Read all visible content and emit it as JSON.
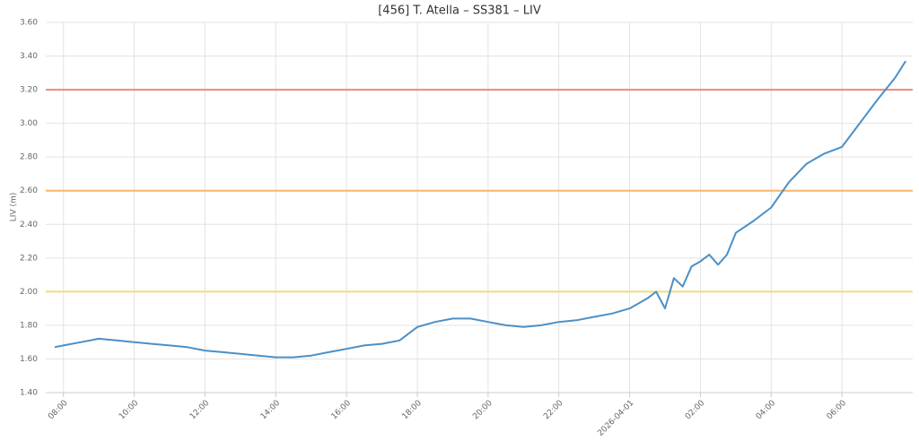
{
  "chart_data": {
    "type": "line",
    "title": "[456] T. Atella – SS381 – LIV",
    "y_label": "LIV (m)",
    "x": [
      -0.25,
      0,
      0.5,
      1,
      1.5,
      2,
      2.5,
      3,
      3.5,
      4,
      4.5,
      5,
      5.5,
      6,
      6.5,
      7,
      7.5,
      8,
      8.5,
      9,
      9.5,
      10,
      10.5,
      11,
      11.5,
      12,
      12.5,
      13,
      13.5,
      14,
      14.5,
      15,
      15.5,
      16,
      16.5,
      16.75,
      17,
      17.25,
      17.5,
      17.75,
      18,
      18.25,
      18.5,
      18.75,
      19,
      19.5,
      20,
      20.5,
      21,
      21.5,
      22,
      22.5,
      23,
      23.5,
      23.8
    ],
    "series": [
      {
        "color": "#4a90c8",
        "values": [
          1.67,
          1.68,
          1.7,
          1.72,
          1.71,
          1.7,
          1.69,
          1.68,
          1.67,
          1.65,
          1.64,
          1.63,
          1.62,
          1.61,
          1.61,
          1.62,
          1.64,
          1.66,
          1.68,
          1.69,
          1.71,
          1.79,
          1.82,
          1.84,
          1.84,
          1.82,
          1.8,
          1.79,
          1.8,
          1.82,
          1.83,
          1.85,
          1.87,
          1.9,
          1.96,
          2.0,
          1.9,
          2.08,
          2.03,
          2.15,
          2.18,
          2.22,
          2.16,
          2.22,
          2.35,
          2.42,
          2.5,
          2.65,
          2.76,
          2.82,
          2.86,
          3.0,
          3.14,
          3.27,
          3.37
        ]
      }
    ],
    "thresholds": [
      {
        "value": 3.2,
        "color": "#ec8a7a"
      },
      {
        "value": 2.6,
        "color": "#f5b46a"
      },
      {
        "value": 2.0,
        "color": "#f2dc7a"
      }
    ],
    "xlim": [
      -0.5,
      24
    ],
    "xticks": [
      {
        "value": 0,
        "label": "08:00"
      },
      {
        "value": 2,
        "label": "10:00"
      },
      {
        "value": 4,
        "label": "12:00"
      },
      {
        "value": 6,
        "label": "14:00"
      },
      {
        "value": 8,
        "label": "16:00"
      },
      {
        "value": 10,
        "label": "18:00"
      },
      {
        "value": 12,
        "label": "20:00"
      },
      {
        "value": 14,
        "label": "22:00"
      },
      {
        "value": 16,
        "label": "2026-04-01"
      },
      {
        "value": 18,
        "label": "02:00"
      },
      {
        "value": 20,
        "label": "04:00"
      },
      {
        "value": 22,
        "label": "06:00"
      }
    ],
    "ylim": [
      1.4,
      3.6
    ],
    "yticks": [
      {
        "value": 1.4,
        "label": "1.40"
      },
      {
        "value": 1.6,
        "label": "1.60"
      },
      {
        "value": 1.8,
        "label": "1.80"
      },
      {
        "value": 2.0,
        "label": "2.00"
      },
      {
        "value": 2.2,
        "label": "2.20"
      },
      {
        "value": 2.4,
        "label": "2.40"
      },
      {
        "value": 2.6,
        "label": "2.60"
      },
      {
        "value": 2.8,
        "label": "2.80"
      },
      {
        "value": 3.0,
        "label": "3.00"
      },
      {
        "value": 3.2,
        "label": "3.20"
      },
      {
        "value": 3.4,
        "label": "3.40"
      },
      {
        "value": 3.6,
        "label": "3.60"
      }
    ],
    "grid": true
  }
}
